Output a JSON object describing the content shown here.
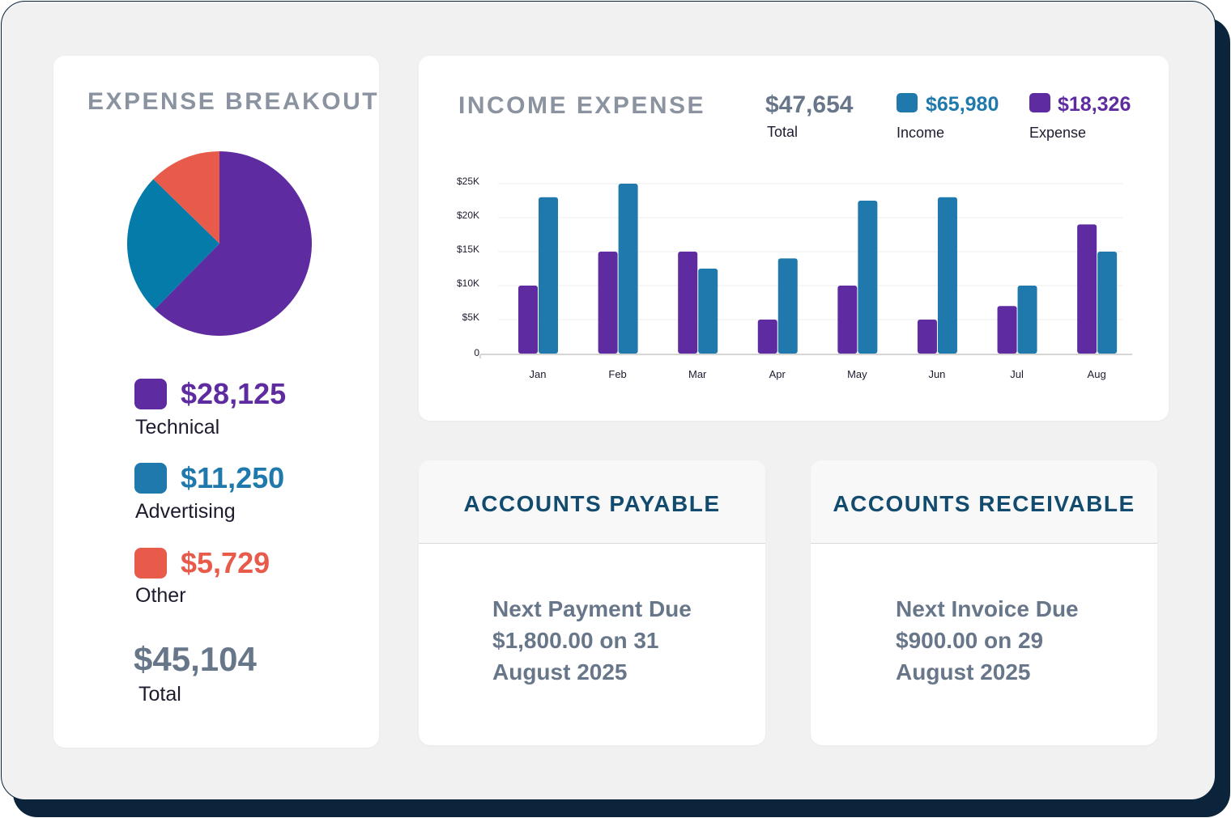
{
  "expense_breakout": {
    "title": "EXPENSE BREAKOUT",
    "items": [
      {
        "value": "$28,125",
        "label": "Technical",
        "color": "#5e2ba0"
      },
      {
        "value": "$11,250",
        "label": "Advertising",
        "color": "#1f79ad"
      },
      {
        "value": "$5,729",
        "label": "Other",
        "color": "#e85b4b"
      }
    ],
    "total_value": "$45,104",
    "total_label": "Total",
    "pie_colors": [
      "#5e2ba0",
      "#047ba8",
      "#e85b4b"
    ]
  },
  "income_expense": {
    "title": "INCOME EXPENSE",
    "total_value": "$47,654",
    "total_label": "Total",
    "income_value": "$65,980",
    "income_label": "Income",
    "expense_value": "$18,326",
    "expense_label": "Expense",
    "income_color": "#1f79ad",
    "expense_color": "#5e2ba0"
  },
  "chart_data": {
    "type": "bar",
    "categories": [
      "Jan",
      "Feb",
      "Mar",
      "Apr",
      "May",
      "Jun",
      "Jul",
      "Aug"
    ],
    "series": [
      {
        "values": [
          10000,
          15000,
          15000,
          5000,
          10000,
          5000,
          7000,
          19000
        ],
        "color": "#5e2ba0"
      },
      {
        "values": [
          23000,
          25000,
          12500,
          14000,
          22500,
          23000,
          10000,
          15000
        ],
        "color": "#1f79ad"
      }
    ],
    "y_ticks": [
      "0",
      "$5K",
      "$10K",
      "$15K",
      "$20K",
      "$25K"
    ],
    "ylim": [
      0,
      25000
    ],
    "title": "",
    "xlabel": "",
    "ylabel": "",
    "grid": true
  },
  "accounts_payable": {
    "title": "ACCOUNTS PAYABLE",
    "lines": [
      "Next Payment Due",
      "$1,800.00 on 31",
      "August 2025"
    ]
  },
  "accounts_receivable": {
    "title": "ACCOUNTS RECEIVABLE",
    "lines": [
      "Next Invoice Due",
      "$900.00 on 29",
      "August 2025"
    ]
  }
}
